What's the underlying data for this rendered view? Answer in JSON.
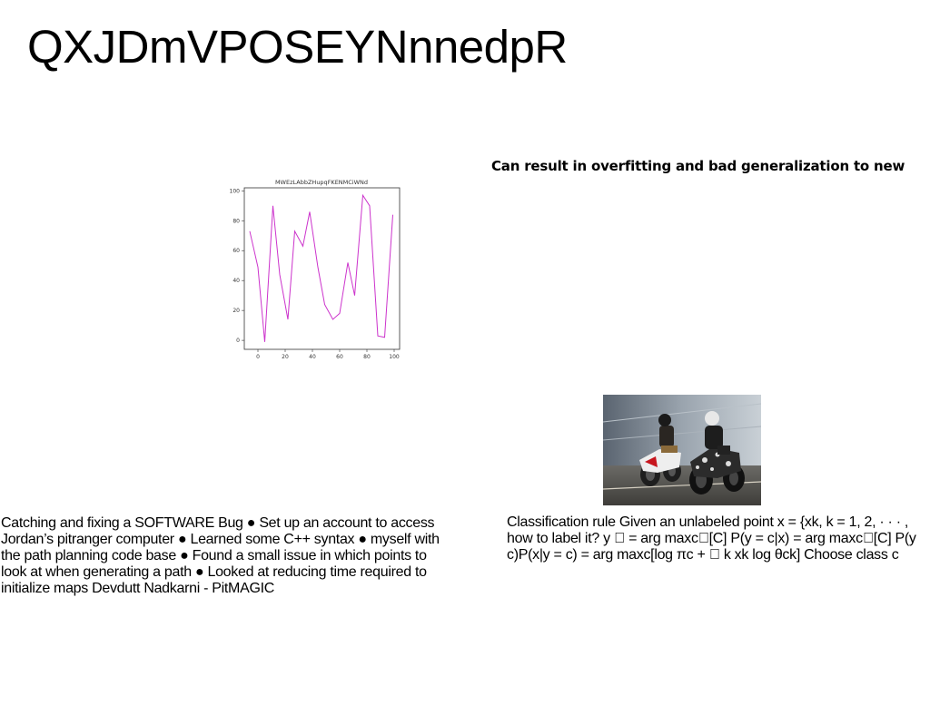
{
  "slide": {
    "title": "QXJDmVPOSEYNnnedpR",
    "bold_note": "Can result in overfitting and bad generalization to new",
    "left_text": "Catching and fixing a SOFTWARE Bug ● Set up an account to access Jordan’s pitranger computer ● Learned some C++ syntax ● myself with the path planning code base ● Found a small issue in which points to look at when generating a path ● Looked at reducing time required to initialize maps Devdutt Nadkarni - PitMAGIC",
    "right_text": "Classification rule Given an unlabeled point x = {xk, k = 1, 2, · · · , how to label it? y ⃞ = arg maxc⃞[C] P(y = c|x) = arg maxc⃞[C] P(y c)P(x|y = c) = arg maxc[log πc + ⃞ k xk log θck] Choose class c",
    "photo_icon": "motorcycle-riders-photo"
  },
  "chart_data": {
    "type": "line",
    "title": "MWEzLAbbZHupqFKENMCiWNd",
    "xlabel": "",
    "ylabel": "",
    "color": "#cc33cc",
    "xlim": [
      -10,
      104
    ],
    "ylim": [
      -6,
      102
    ],
    "x_ticks": [
      "0",
      "20",
      "40",
      "60",
      "80",
      "100"
    ],
    "y_ticks": [
      "0",
      "20",
      "40",
      "60",
      "80",
      "100"
    ],
    "grid": false,
    "x": [
      -6,
      0,
      5,
      11,
      16,
      22,
      27,
      33,
      38,
      44,
      49,
      55,
      60,
      66,
      71,
      77,
      82,
      88,
      93,
      99
    ],
    "values": [
      73,
      49,
      -1,
      90,
      44,
      14,
      73,
      63,
      86,
      49,
      24,
      14,
      18,
      52,
      30,
      97,
      90,
      3,
      2,
      84
    ]
  }
}
